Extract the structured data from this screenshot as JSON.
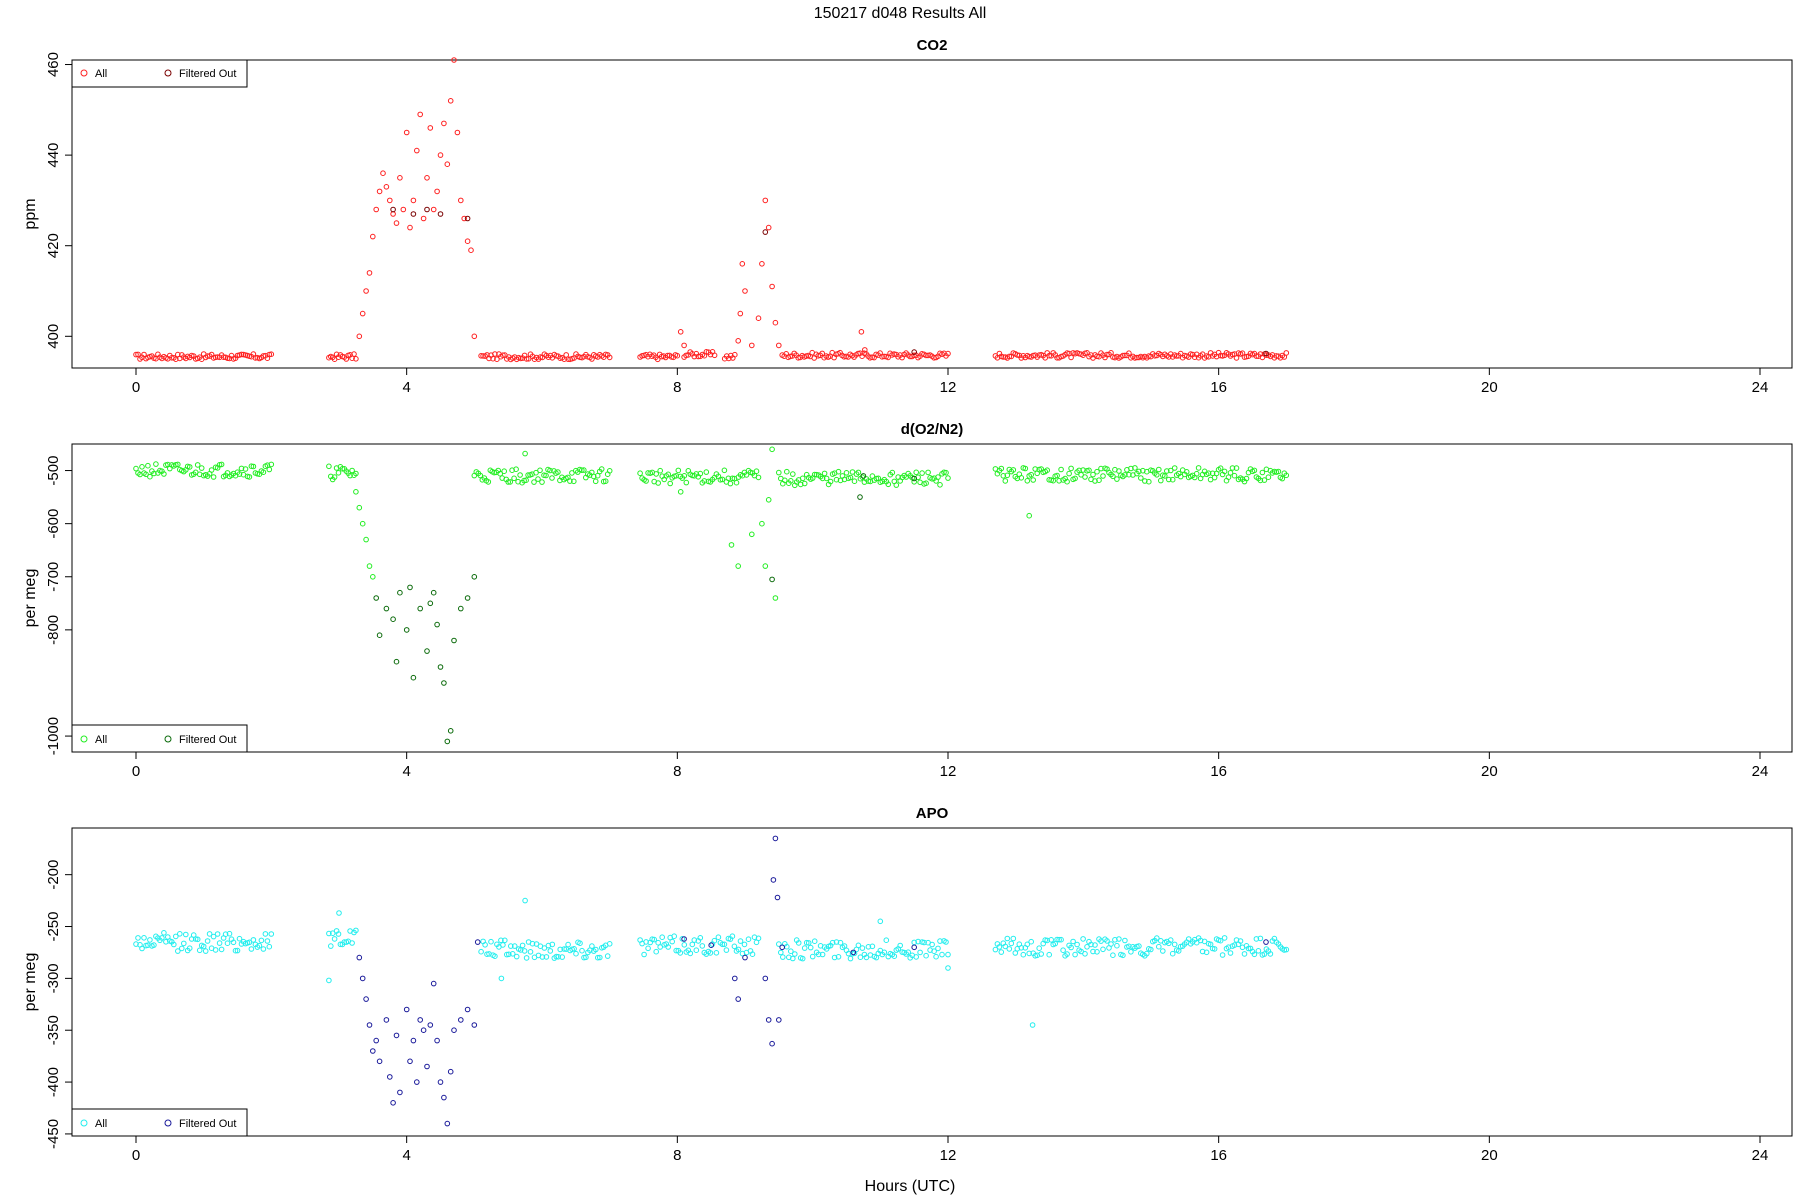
{
  "page": {
    "title": "150217   d048   Results All"
  },
  "colors": {
    "co2_all": "#ff2020",
    "co2_filtered": "#7a0000",
    "o2_all": "#22ee22",
    "o2_filtered": "#0a6a0a",
    "apo_all": "#22eeee",
    "apo_filtered": "#1a1a9a"
  },
  "chart_data": [
    {
      "type": "scatter",
      "title": "CO2",
      "xlabel": "",
      "ylabel": "ppm",
      "xlim": [
        0,
        24
      ],
      "ylim": [
        393,
        461
      ],
      "x_ticks": [
        "0",
        "4",
        "8",
        "12",
        "16",
        "20",
        "24"
      ],
      "y_ticks": [
        "400",
        "420",
        "440",
        "460"
      ],
      "legend": {
        "placement": "top-left",
        "entries": [
          "All",
          "Filtered Out"
        ]
      },
      "grid": false,
      "series": [
        {
          "name": "All",
          "color": "co2_all",
          "segments": [
            {
              "x0": 0.0,
              "x1": 2.0,
              "y": 395.5
            },
            {
              "x0": 2.85,
              "x1": 3.25,
              "y": 395.5
            },
            {
              "x0": 5.1,
              "x1": 7.0,
              "y": 395.5
            },
            {
              "x0": 7.45,
              "x1": 8.0,
              "y": 395.5
            },
            {
              "x0": 8.1,
              "x1": 8.55,
              "y": 396.0
            },
            {
              "x0": 8.7,
              "x1": 8.85,
              "y": 395.5
            },
            {
              "x0": 9.55,
              "x1": 12.0,
              "y": 395.8
            },
            {
              "x0": 12.7,
              "x1": 17.0,
              "y": 395.8
            }
          ],
          "excursions": [
            {
              "x": 3.3,
              "y": 400
            },
            {
              "x": 3.35,
              "y": 405
            },
            {
              "x": 3.4,
              "y": 410
            },
            {
              "x": 3.45,
              "y": 414
            },
            {
              "x": 3.5,
              "y": 422
            },
            {
              "x": 3.55,
              "y": 428
            },
            {
              "x": 3.6,
              "y": 432
            },
            {
              "x": 3.65,
              "y": 436
            },
            {
              "x": 3.7,
              "y": 433
            },
            {
              "x": 3.75,
              "y": 430
            },
            {
              "x": 3.8,
              "y": 427
            },
            {
              "x": 3.85,
              "y": 425
            },
            {
              "x": 3.9,
              "y": 435
            },
            {
              "x": 3.95,
              "y": 428
            },
            {
              "x": 4.0,
              "y": 445
            },
            {
              "x": 4.05,
              "y": 424
            },
            {
              "x": 4.1,
              "y": 430
            },
            {
              "x": 4.15,
              "y": 441
            },
            {
              "x": 4.2,
              "y": 449
            },
            {
              "x": 4.25,
              "y": 426
            },
            {
              "x": 4.3,
              "y": 435
            },
            {
              "x": 4.35,
              "y": 446
            },
            {
              "x": 4.4,
              "y": 428
            },
            {
              "x": 4.45,
              "y": 432
            },
            {
              "x": 4.5,
              "y": 440
            },
            {
              "x": 4.55,
              "y": 447
            },
            {
              "x": 4.6,
              "y": 438
            },
            {
              "x": 4.65,
              "y": 452
            },
            {
              "x": 4.7,
              "y": 461
            },
            {
              "x": 4.75,
              "y": 445
            },
            {
              "x": 4.8,
              "y": 430
            },
            {
              "x": 4.85,
              "y": 426
            },
            {
              "x": 4.9,
              "y": 421
            },
            {
              "x": 4.95,
              "y": 419
            },
            {
              "x": 5.0,
              "y": 400
            },
            {
              "x": 8.05,
              "y": 401
            },
            {
              "x": 8.1,
              "y": 398
            },
            {
              "x": 8.9,
              "y": 399
            },
            {
              "x": 8.93,
              "y": 405
            },
            {
              "x": 8.96,
              "y": 416
            },
            {
              "x": 9.0,
              "y": 410
            },
            {
              "x": 9.1,
              "y": 398
            },
            {
              "x": 9.2,
              "y": 404
            },
            {
              "x": 9.25,
              "y": 416
            },
            {
              "x": 9.3,
              "y": 430
            },
            {
              "x": 9.35,
              "y": 424
            },
            {
              "x": 9.4,
              "y": 411
            },
            {
              "x": 9.45,
              "y": 403
            },
            {
              "x": 9.5,
              "y": 398
            },
            {
              "x": 10.72,
              "y": 401
            },
            {
              "x": 10.77,
              "y": 397
            }
          ]
        },
        {
          "name": "Filtered Out",
          "color": "co2_filtered",
          "points": [
            {
              "x": 3.8,
              "y": 428
            },
            {
              "x": 4.1,
              "y": 427
            },
            {
              "x": 4.3,
              "y": 428
            },
            {
              "x": 4.5,
              "y": 427
            },
            {
              "x": 4.9,
              "y": 426
            },
            {
              "x": 9.3,
              "y": 423
            },
            {
              "x": 11.5,
              "y": 396.5
            },
            {
              "x": 16.7,
              "y": 396.2
            }
          ]
        }
      ]
    },
    {
      "type": "scatter",
      "title": "d(O2/N2)",
      "xlabel": "",
      "ylabel": "per meg",
      "xlim": [
        0,
        24
      ],
      "ylim": [
        -1030,
        -450
      ],
      "x_ticks": [
        "0",
        "4",
        "8",
        "12",
        "16",
        "20",
        "24"
      ],
      "y_ticks": [
        "-500",
        "-600",
        "-700",
        "-800",
        "-1000"
      ],
      "legend": {
        "placement": "bottom-left",
        "entries": [
          "All",
          "Filtered Out"
        ]
      },
      "grid": false,
      "series": [
        {
          "name": "All",
          "color": "o2_all",
          "segments": [
            {
              "x0": 0.0,
              "x1": 2.0,
              "y": -500
            },
            {
              "x0": 2.85,
              "x1": 3.25,
              "y": -505
            },
            {
              "x0": 5.0,
              "x1": 7.0,
              "y": -510
            },
            {
              "x0": 7.45,
              "x1": 9.2,
              "y": -512
            },
            {
              "x0": 9.5,
              "x1": 12.0,
              "y": -515
            },
            {
              "x0": 12.7,
              "x1": 17.0,
              "y": -508
            }
          ],
          "excursions": [
            {
              "x": 3.25,
              "y": -540
            },
            {
              "x": 3.3,
              "y": -570
            },
            {
              "x": 3.35,
              "y": -600
            },
            {
              "x": 3.4,
              "y": -630
            },
            {
              "x": 3.45,
              "y": -680
            },
            {
              "x": 3.5,
              "y": -700
            },
            {
              "x": 5.75,
              "y": -468
            },
            {
              "x": 8.05,
              "y": -540
            },
            {
              "x": 8.8,
              "y": -640
            },
            {
              "x": 8.9,
              "y": -680
            },
            {
              "x": 9.1,
              "y": -620
            },
            {
              "x": 9.25,
              "y": -600
            },
            {
              "x": 9.3,
              "y": -680
            },
            {
              "x": 9.35,
              "y": -555
            },
            {
              "x": 9.4,
              "y": -460
            },
            {
              "x": 9.45,
              "y": -740
            },
            {
              "x": 13.2,
              "y": -585
            }
          ]
        },
        {
          "name": "Filtered Out",
          "color": "o2_filtered",
          "points": [
            {
              "x": 3.55,
              "y": -740
            },
            {
              "x": 3.6,
              "y": -810
            },
            {
              "x": 3.7,
              "y": -760
            },
            {
              "x": 3.8,
              "y": -780
            },
            {
              "x": 3.85,
              "y": -860
            },
            {
              "x": 3.9,
              "y": -730
            },
            {
              "x": 4.0,
              "y": -800
            },
            {
              "x": 4.05,
              "y": -720
            },
            {
              "x": 4.1,
              "y": -890
            },
            {
              "x": 4.2,
              "y": -760
            },
            {
              "x": 4.3,
              "y": -840
            },
            {
              "x": 4.35,
              "y": -750
            },
            {
              "x": 4.4,
              "y": -730
            },
            {
              "x": 4.45,
              "y": -790
            },
            {
              "x": 4.5,
              "y": -870
            },
            {
              "x": 4.55,
              "y": -900
            },
            {
              "x": 4.6,
              "y": -1010
            },
            {
              "x": 4.65,
              "y": -990
            },
            {
              "x": 4.7,
              "y": -820
            },
            {
              "x": 4.8,
              "y": -760
            },
            {
              "x": 4.9,
              "y": -740
            },
            {
              "x": 5.0,
              "y": -700
            },
            {
              "x": 9.4,
              "y": -705
            },
            {
              "x": 10.7,
              "y": -550
            },
            {
              "x": 10.75,
              "y": -510
            },
            {
              "x": 11.5,
              "y": -515
            }
          ]
        }
      ]
    },
    {
      "type": "scatter",
      "title": "APO",
      "xlabel": "Hours (UTC)",
      "ylabel": "per meg",
      "xlim": [
        0,
        24
      ],
      "ylim": [
        -452,
        -155
      ],
      "x_ticks": [
        "0",
        "4",
        "8",
        "12",
        "16",
        "20",
        "24"
      ],
      "y_ticks": [
        "-200",
        "-250",
        "-300",
        "-350",
        "-400",
        "-450"
      ],
      "legend": {
        "placement": "bottom-left",
        "entries": [
          "All",
          "Filtered Out"
        ]
      },
      "grid": false,
      "series": [
        {
          "name": "All",
          "color": "apo_all",
          "segments": [
            {
              "x0": 0.0,
              "x1": 2.0,
              "y": -265
            },
            {
              "x0": 2.85,
              "x1": 3.25,
              "y": -260
            },
            {
              "x0": 5.1,
              "x1": 7.0,
              "y": -272
            },
            {
              "x0": 7.45,
              "x1": 9.2,
              "y": -268
            },
            {
              "x0": 9.5,
              "x1": 12.0,
              "y": -272
            },
            {
              "x0": 12.7,
              "x1": 17.0,
              "y": -270
            }
          ],
          "excursions": [
            {
              "x": 2.85,
              "y": -302
            },
            {
              "x": 3.0,
              "y": -237
            },
            {
              "x": 5.75,
              "y": -225
            },
            {
              "x": 5.4,
              "y": -300
            },
            {
              "x": 11.0,
              "y": -245
            },
            {
              "x": 12.0,
              "y": -290
            },
            {
              "x": 13.25,
              "y": -345
            }
          ]
        },
        {
          "name": "Filtered Out",
          "color": "apo_filtered",
          "points": [
            {
              "x": 3.3,
              "y": -280
            },
            {
              "x": 3.35,
              "y": -300
            },
            {
              "x": 3.4,
              "y": -320
            },
            {
              "x": 3.45,
              "y": -345
            },
            {
              "x": 3.5,
              "y": -370
            },
            {
              "x": 3.55,
              "y": -360
            },
            {
              "x": 3.6,
              "y": -380
            },
            {
              "x": 3.7,
              "y": -340
            },
            {
              "x": 3.75,
              "y": -395
            },
            {
              "x": 3.8,
              "y": -420
            },
            {
              "x": 3.85,
              "y": -355
            },
            {
              "x": 3.9,
              "y": -410
            },
            {
              "x": 4.0,
              "y": -330
            },
            {
              "x": 4.05,
              "y": -380
            },
            {
              "x": 4.1,
              "y": -360
            },
            {
              "x": 4.15,
              "y": -400
            },
            {
              "x": 4.2,
              "y": -340
            },
            {
              "x": 4.25,
              "y": -350
            },
            {
              "x": 4.3,
              "y": -385
            },
            {
              "x": 4.35,
              "y": -345
            },
            {
              "x": 4.4,
              "y": -305
            },
            {
              "x": 4.45,
              "y": -360
            },
            {
              "x": 4.5,
              "y": -400
            },
            {
              "x": 4.55,
              "y": -415
            },
            {
              "x": 4.6,
              "y": -440
            },
            {
              "x": 4.65,
              "y": -390
            },
            {
              "x": 4.7,
              "y": -350
            },
            {
              "x": 4.8,
              "y": -340
            },
            {
              "x": 4.9,
              "y": -330
            },
            {
              "x": 5.0,
              "y": -345
            },
            {
              "x": 5.05,
              "y": -265
            },
            {
              "x": 8.1,
              "y": -262
            },
            {
              "x": 8.5,
              "y": -268
            },
            {
              "x": 8.85,
              "y": -300
            },
            {
              "x": 8.9,
              "y": -320
            },
            {
              "x": 9.0,
              "y": -280
            },
            {
              "x": 9.3,
              "y": -300
            },
            {
              "x": 9.35,
              "y": -340
            },
            {
              "x": 9.4,
              "y": -363
            },
            {
              "x": 9.42,
              "y": -205
            },
            {
              "x": 9.45,
              "y": -165
            },
            {
              "x": 9.48,
              "y": -222
            },
            {
              "x": 9.5,
              "y": -340
            },
            {
              "x": 9.55,
              "y": -270
            },
            {
              "x": 10.6,
              "y": -275
            },
            {
              "x": 11.5,
              "y": -270
            },
            {
              "x": 16.7,
              "y": -265
            }
          ]
        }
      ]
    }
  ]
}
